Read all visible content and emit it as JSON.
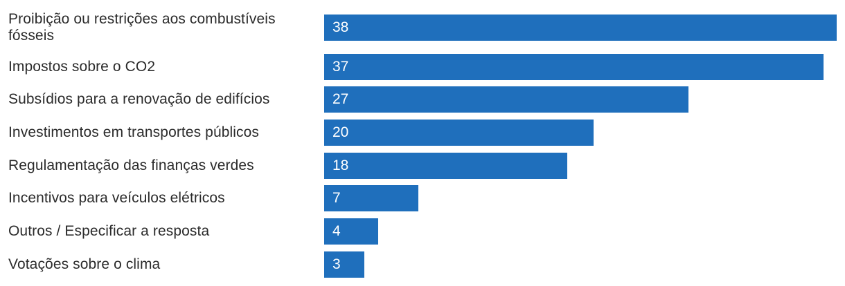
{
  "chart_data": {
    "type": "bar",
    "orientation": "horizontal",
    "categories": [
      "Proibição ou restrições aos combustíveis fósseis",
      "Impostos sobre o CO2",
      "Subsídios para a renovação de edifícios",
      "Investimentos em transportes públicos",
      "Regulamentação das finanças verdes",
      "Incentivos para veículos elétricos",
      "Outros / Especificar a resposta",
      "Votações sobre o clima"
    ],
    "values": [
      38,
      37,
      27,
      20,
      18,
      7,
      4,
      3
    ],
    "xlim": [
      0,
      38
    ],
    "grid": false,
    "data_labels": "inside-start",
    "colors": {
      "bar": "#1f6fbc",
      "value_label": "#ffffff",
      "category_label": "#2b2b2b"
    }
  }
}
